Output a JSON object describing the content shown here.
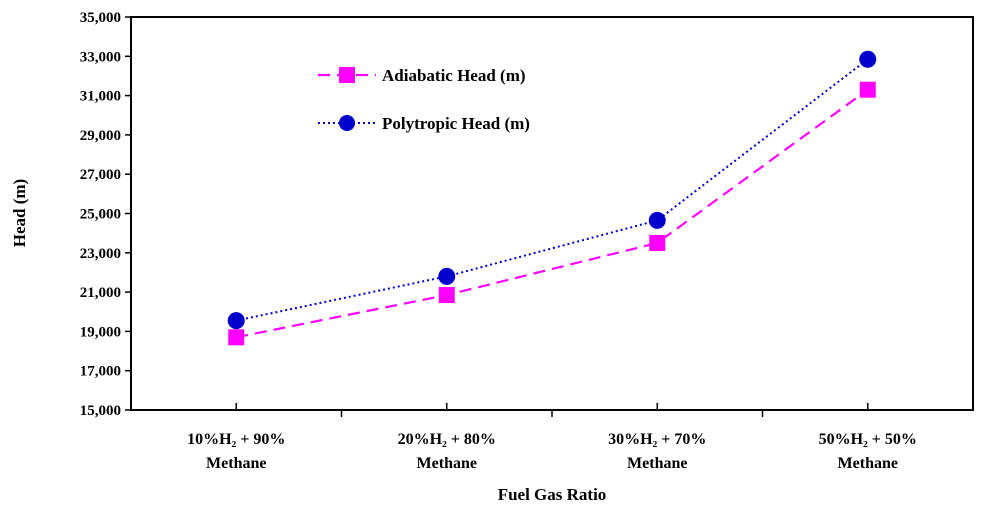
{
  "chart_data": {
    "type": "line",
    "title": "",
    "xlabel": "Fuel Gas Ratio",
    "ylabel": "Head (m)",
    "ylim": [
      15000,
      35000
    ],
    "yticks": [
      "15,000",
      "17,000",
      "19,000",
      "21,000",
      "23,000",
      "25,000",
      "27,000",
      "29,000",
      "31,000",
      "33,000",
      "35,000"
    ],
    "categories": [
      [
        "10%H₂ + 90%",
        "Methane"
      ],
      [
        "20%H₂ + 80%",
        "Methane"
      ],
      [
        "30%H₂ + 70%",
        "Methane"
      ],
      [
        "50%H₂ + 50%",
        "Methane"
      ]
    ],
    "series": [
      {
        "name": "Adiabatic Head (m)",
        "values": [
          18700,
          20850,
          23500,
          31300
        ],
        "color": "#ff00ff",
        "marker": "square",
        "line": "dashed"
      },
      {
        "name": "Polytropic Head (m)",
        "values": [
          19550,
          21800,
          24650,
          32850
        ],
        "color": "#0000cc",
        "marker": "circle",
        "line": "dotted"
      }
    ],
    "grid": false,
    "legend_position": "top-left"
  }
}
